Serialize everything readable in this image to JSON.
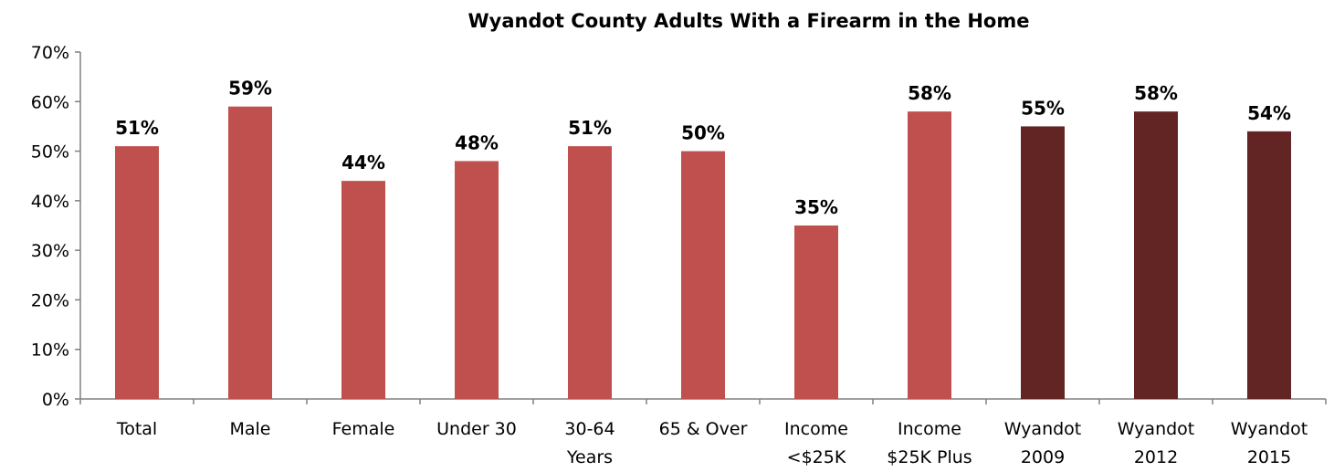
{
  "chart_data": {
    "type": "bar",
    "title": "Wyandot County Adults With a Firearm in the Home",
    "xlabel": "",
    "ylabel": "",
    "ylim": [
      0,
      70
    ],
    "yticks": [
      "0%",
      "10%",
      "20%",
      "30%",
      "40%",
      "50%",
      "60%",
      "70%"
    ],
    "grid": false,
    "categories": [
      [
        "Total"
      ],
      [
        "Male"
      ],
      [
        "Female"
      ],
      [
        "Under 30"
      ],
      [
        "30-64",
        "Years"
      ],
      [
        "65 & Over"
      ],
      [
        "Income",
        "<$25K"
      ],
      [
        "Income",
        "$25K Plus"
      ],
      [
        "Wyandot",
        "2009"
      ],
      [
        "Wyandot",
        "2012"
      ],
      [
        "Wyandot",
        "2015"
      ]
    ],
    "values": [
      51,
      59,
      44,
      48,
      51,
      50,
      35,
      58,
      55,
      58,
      54
    ],
    "data_labels": [
      "51%",
      "59%",
      "44%",
      "48%",
      "51%",
      "50%",
      "35%",
      "58%",
      "55%",
      "58%",
      "54%"
    ],
    "bar_colors": [
      "#c0504d",
      "#c0504d",
      "#c0504d",
      "#c0504d",
      "#c0504d",
      "#c0504d",
      "#c0504d",
      "#c0504d",
      "#632523",
      "#632523",
      "#632523"
    ]
  }
}
